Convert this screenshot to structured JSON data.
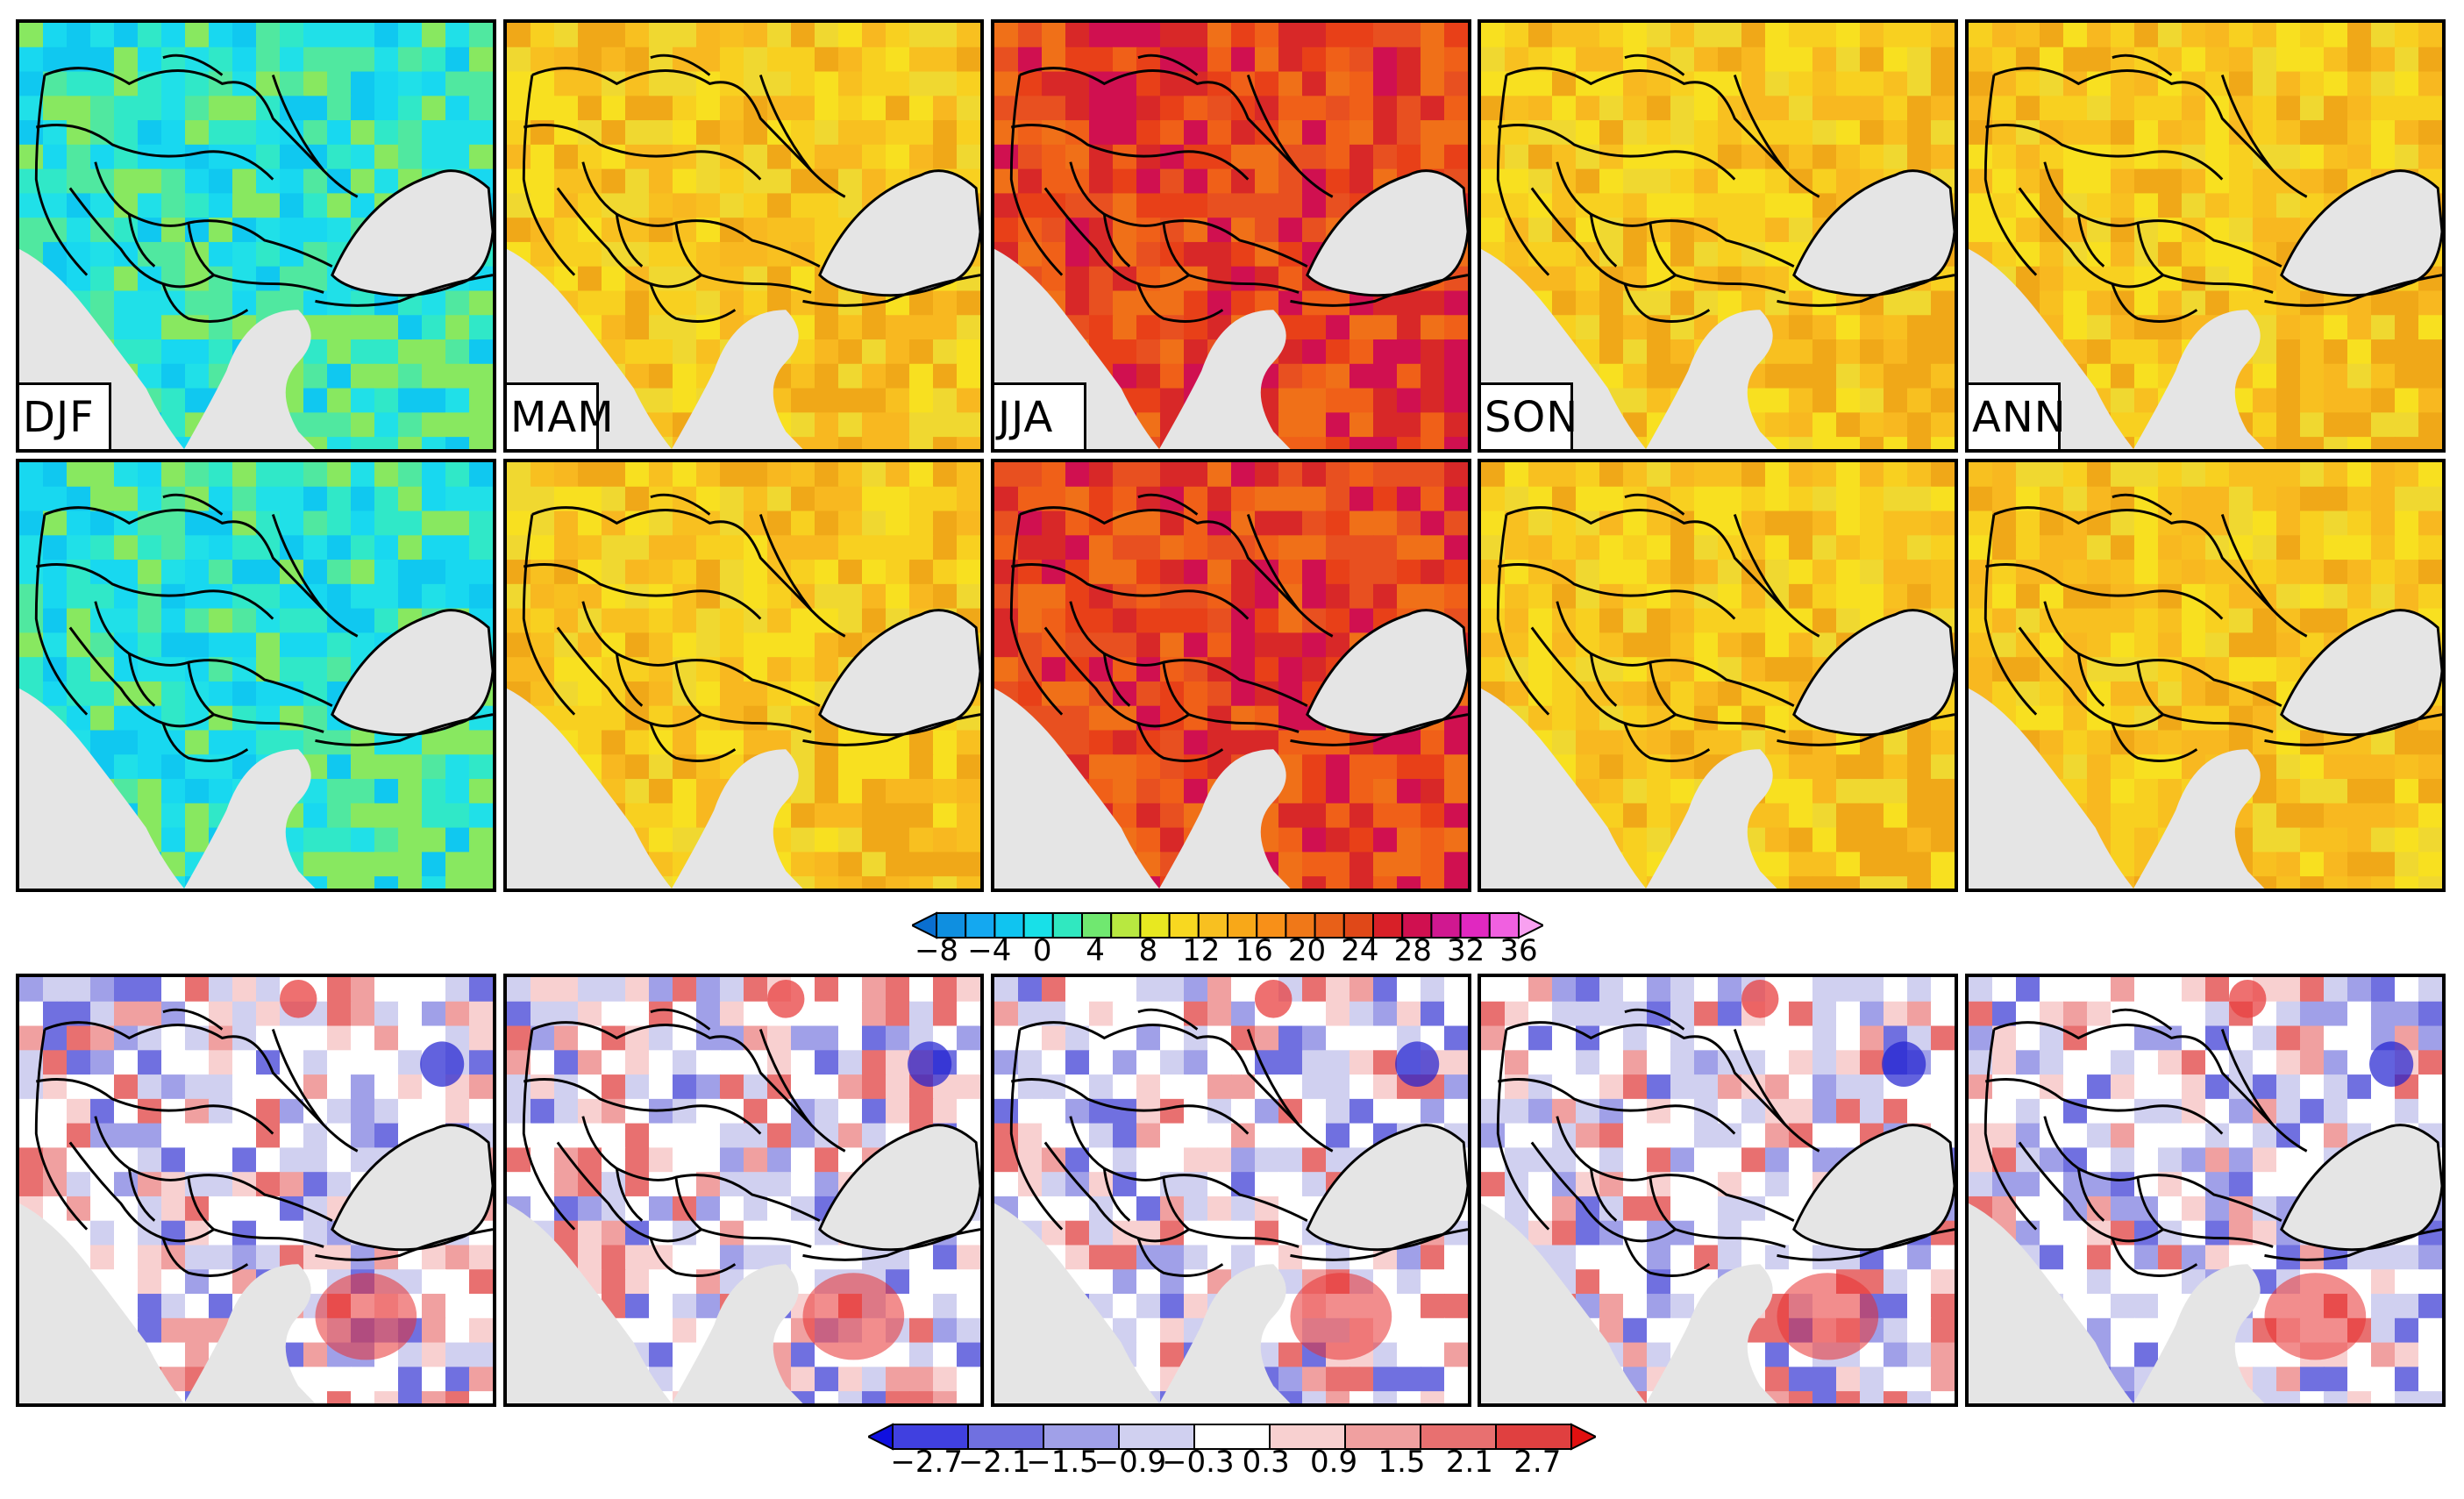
{
  "seasons": [
    "DJF",
    "MAM",
    "JJA",
    "SON",
    "ANN"
  ],
  "rows": [
    {
      "name": "top-row",
      "temps": {
        "DJF": "cold",
        "MAM": "mild",
        "JJA": "hot",
        "SON": "mild",
        "ANN": "mild"
      }
    },
    {
      "name": "middle-row",
      "temps": {
        "DJF": "cold",
        "MAM": "mild",
        "JJA": "hot",
        "SON": "mild",
        "ANN": "mild"
      }
    },
    {
      "name": "bottom-row",
      "kind": "difference"
    }
  ],
  "colorbar_temperature": {
    "ticks": [
      "−8",
      "−4",
      "0",
      "4",
      "8",
      "12",
      "16",
      "20",
      "24",
      "28",
      "32",
      "36"
    ],
    "colors": [
      "#0a6fd0",
      "#0f8fe0",
      "#14a8f0",
      "#10c4f0",
      "#18e0e8",
      "#30e8c0",
      "#70e870",
      "#b8e840",
      "#e8e820",
      "#f8d820",
      "#f8c020",
      "#f8a818",
      "#f89018",
      "#f07818",
      "#e86018",
      "#e04818",
      "#d82028",
      "#d01050",
      "#d01890",
      "#e028c0",
      "#f060e0",
      "#f8a0f0"
    ]
  },
  "colorbar_difference": {
    "ticks": [
      "−2.7",
      "−2.1",
      "−1.5",
      "−0.9",
      "−0.3",
      "0.3",
      "0.9",
      "1.5",
      "2.1",
      "2.7"
    ],
    "colors": [
      "#1010e0",
      "#4040e0",
      "#7070e0",
      "#a0a0e8",
      "#d0d0f0",
      "#ffffff",
      "#f8d0d0",
      "#f0a0a0",
      "#e87070",
      "#e04040",
      "#e01010"
    ]
  }
}
